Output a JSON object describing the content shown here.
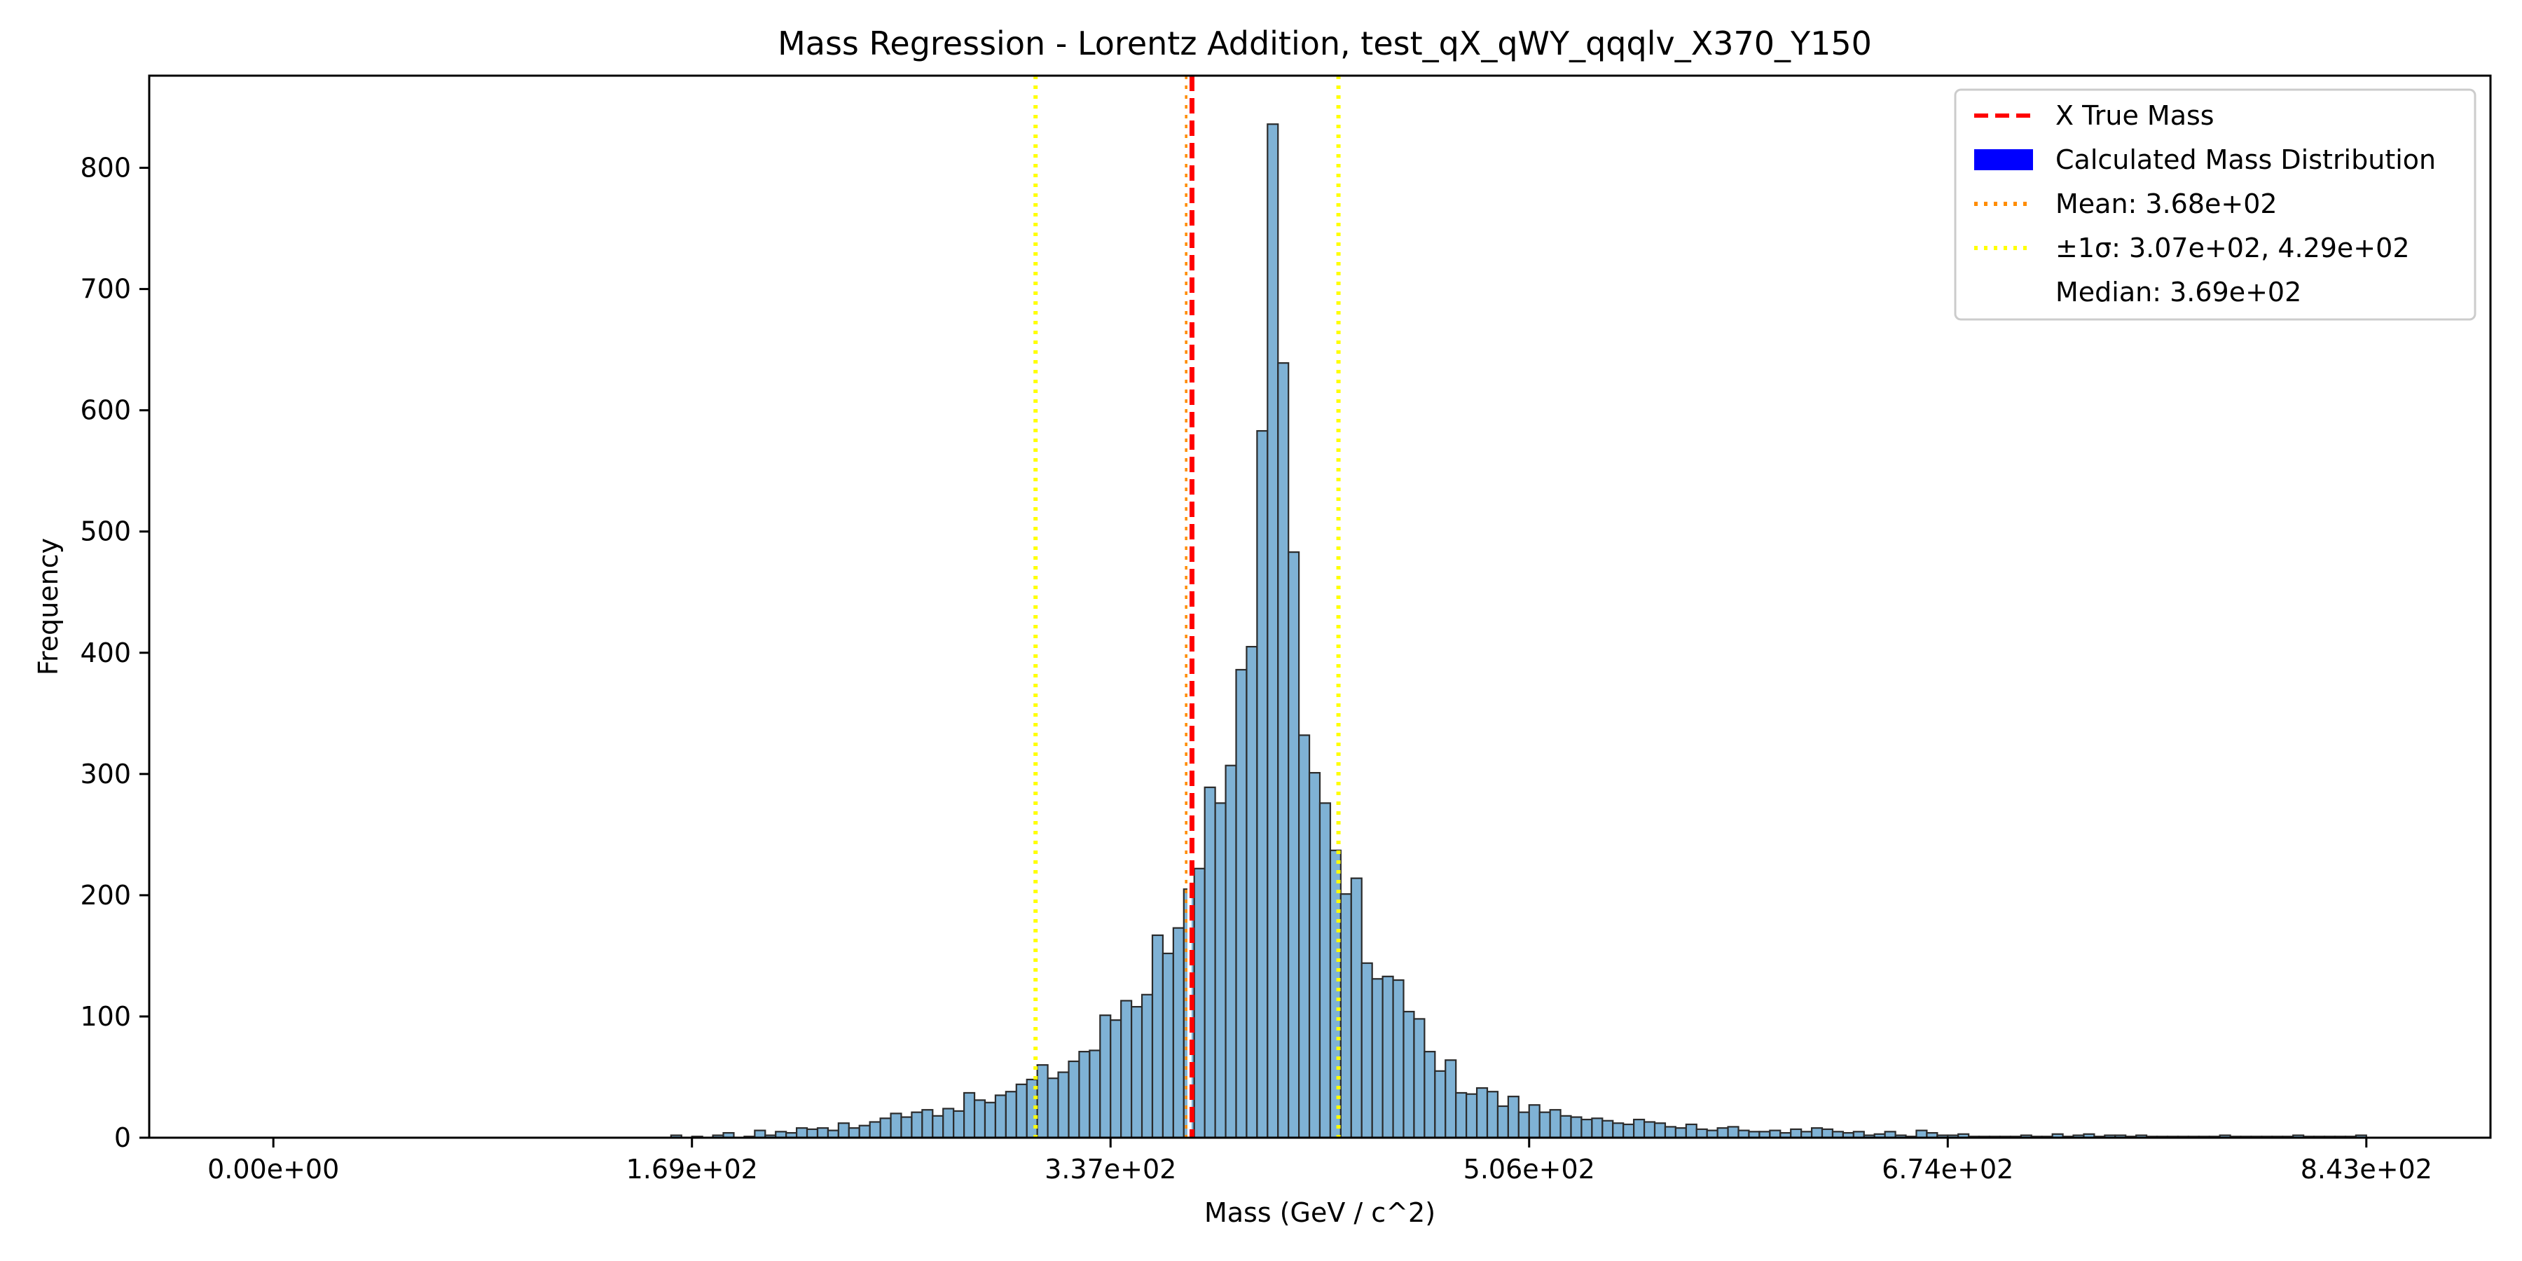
{
  "chart_data": {
    "type": "bar",
    "title": "Mass Regression - Lorentz Addition, test_qX_qWY_qqqlv_X370_Y150",
    "xlabel": "Mass (GeV / c^2)",
    "ylabel": "Frequency",
    "xlim": [
      -50,
      893
    ],
    "ylim": [
      0,
      876
    ],
    "x_ticks": [
      {
        "value": 0,
        "label": "0.00e+00"
      },
      {
        "value": 168.6,
        "label": "1.69e+02"
      },
      {
        "value": 337.2,
        "label": "3.37e+02"
      },
      {
        "value": 505.8,
        "label": "5.06e+02"
      },
      {
        "value": 674.4,
        "label": "6.74e+02"
      },
      {
        "value": 843,
        "label": "8.43e+02"
      }
    ],
    "y_ticks": [
      {
        "value": 0,
        "label": "0"
      },
      {
        "value": 100,
        "label": "100"
      },
      {
        "value": 200,
        "label": "200"
      },
      {
        "value": 300,
        "label": "300"
      },
      {
        "value": 400,
        "label": "400"
      },
      {
        "value": 500,
        "label": "500"
      },
      {
        "value": 600,
        "label": "600"
      },
      {
        "value": 700,
        "label": "700"
      },
      {
        "value": 800,
        "label": "800"
      }
    ],
    "grid": false,
    "legend_position": "top-right",
    "colors": {
      "bar_fill": "#7fb2d5",
      "bar_edge": "#2b2b2b",
      "true_mass": "#ff0000",
      "mean": "#ff8c00",
      "sigma": "#ffff00",
      "legend_patch": "#0000ff"
    },
    "histogram": {
      "bin_start": 0,
      "bin_width": 4.215,
      "counts": [
        0,
        0,
        0,
        0,
        0,
        0,
        0,
        0,
        0,
        0,
        0,
        0,
        0,
        0,
        0,
        0,
        0,
        0,
        0,
        0,
        0,
        0,
        0,
        0,
        0,
        0,
        0,
        0,
        0,
        0,
        0,
        0,
        0,
        0,
        0,
        0,
        0,
        0,
        0,
        0,
        0,
        0,
        0,
        0,
        0,
        0,
        0,
        0,
        0,
        0,
        0,
        0,
        0,
        0,
        0,
        0,
        0,
        0,
        0,
        0,
        0,
        0,
        0,
        0,
        0,
        0,
        0,
        0,
        0,
        0,
        0,
        0,
        0,
        0,
        0,
        0,
        0,
        0,
        0,
        0,
        0,
        0,
        0,
        0,
        0,
        0,
        0,
        0,
        0,
        0,
        0,
        0,
        0,
        0,
        0,
        0,
        0,
        0,
        0,
        0,
        0,
        0,
        0,
        0,
        0,
        0,
        0,
        0,
        0,
        0,
        0,
        0,
        0,
        0,
        0,
        0,
        0,
        0,
        0,
        0,
        0,
        0,
        0,
        0,
        0,
        0,
        0,
        0,
        0,
        0,
        0,
        0,
        0,
        0,
        0,
        0,
        0,
        0,
        0,
        0,
        0,
        0,
        0,
        0,
        0,
        0,
        0,
        0,
        0,
        0,
        0,
        0,
        0,
        0,
        0,
        0,
        0,
        0,
        0,
        0,
        0,
        0,
        0,
        0,
        0,
        0,
        0,
        0,
        0,
        0,
        0,
        0,
        0,
        0,
        0,
        0,
        0,
        0,
        0,
        0,
        0,
        0,
        0,
        0,
        0,
        0,
        0,
        0,
        0,
        0,
        0,
        0,
        0,
        0,
        0,
        0,
        0,
        0,
        0,
        0
      ],
      "counts_nonzero": [
        [
          38,
          2
        ],
        [
          40,
          1
        ],
        [
          42,
          2
        ],
        [
          43,
          4
        ],
        [
          45,
          1
        ],
        [
          46,
          6
        ],
        [
          47,
          2
        ],
        [
          48,
          5
        ],
        [
          49,
          4
        ],
        [
          50,
          8
        ],
        [
          51,
          7
        ],
        [
          52,
          8
        ],
        [
          53,
          6
        ],
        [
          54,
          12
        ],
        [
          55,
          8
        ],
        [
          56,
          10
        ],
        [
          57,
          13
        ],
        [
          58,
          16
        ],
        [
          59,
          20
        ],
        [
          60,
          17
        ],
        [
          61,
          21
        ],
        [
          62,
          23
        ],
        [
          63,
          18
        ],
        [
          64,
          24
        ],
        [
          65,
          22
        ],
        [
          66,
          37
        ],
        [
          67,
          31
        ],
        [
          68,
          29
        ],
        [
          69,
          35
        ],
        [
          70,
          38
        ],
        [
          71,
          44
        ],
        [
          72,
          48
        ],
        [
          73,
          60
        ],
        [
          74,
          49
        ],
        [
          75,
          54
        ],
        [
          76,
          63
        ],
        [
          77,
          71
        ],
        [
          78,
          72
        ],
        [
          79,
          101
        ],
        [
          80,
          97
        ],
        [
          81,
          113
        ],
        [
          82,
          108
        ],
        [
          83,
          118
        ],
        [
          84,
          167
        ],
        [
          85,
          152
        ],
        [
          86,
          173
        ],
        [
          87,
          205
        ],
        [
          88,
          222
        ],
        [
          89,
          289
        ],
        [
          90,
          276
        ],
        [
          91,
          307
        ],
        [
          92,
          386
        ],
        [
          93,
          405
        ],
        [
          94,
          583
        ],
        [
          95,
          836
        ],
        [
          96,
          639
        ],
        [
          97,
          483
        ],
        [
          98,
          332
        ],
        [
          99,
          301
        ],
        [
          100,
          276
        ],
        [
          101,
          237
        ],
        [
          102,
          201
        ],
        [
          103,
          214
        ],
        [
          104,
          144
        ],
        [
          105,
          131
        ],
        [
          106,
          133
        ],
        [
          107,
          130
        ],
        [
          108,
          104
        ],
        [
          109,
          98
        ],
        [
          110,
          71
        ],
        [
          111,
          55
        ],
        [
          112,
          64
        ],
        [
          113,
          37
        ],
        [
          114,
          36
        ],
        [
          115,
          41
        ],
        [
          116,
          38
        ],
        [
          117,
          26
        ],
        [
          118,
          34
        ],
        [
          119,
          21
        ],
        [
          120,
          27
        ],
        [
          121,
          21
        ],
        [
          122,
          23
        ],
        [
          123,
          18
        ],
        [
          124,
          17
        ],
        [
          125,
          15
        ],
        [
          126,
          16
        ],
        [
          127,
          14
        ],
        [
          128,
          12
        ],
        [
          129,
          11
        ],
        [
          130,
          15
        ],
        [
          131,
          13
        ],
        [
          132,
          12
        ],
        [
          133,
          9
        ],
        [
          134,
          8
        ],
        [
          135,
          11
        ],
        [
          136,
          7
        ],
        [
          137,
          6
        ],
        [
          138,
          8
        ],
        [
          139,
          9
        ],
        [
          140,
          6
        ],
        [
          141,
          5
        ],
        [
          142,
          5
        ],
        [
          143,
          6
        ],
        [
          144,
          4
        ],
        [
          145,
          7
        ],
        [
          146,
          5
        ],
        [
          147,
          8
        ],
        [
          148,
          7
        ],
        [
          149,
          5
        ],
        [
          150,
          4
        ],
        [
          151,
          5
        ],
        [
          152,
          2
        ],
        [
          153,
          3
        ],
        [
          154,
          5
        ],
        [
          155,
          2
        ],
        [
          156,
          1
        ],
        [
          157,
          6
        ],
        [
          158,
          4
        ],
        [
          159,
          2
        ],
        [
          160,
          2
        ],
        [
          161,
          3
        ],
        [
          162,
          1
        ],
        [
          163,
          1
        ],
        [
          164,
          1
        ],
        [
          165,
          1
        ],
        [
          166,
          1
        ],
        [
          167,
          2
        ],
        [
          168,
          1
        ],
        [
          169,
          1
        ],
        [
          170,
          3
        ],
        [
          171,
          1
        ],
        [
          172,
          2
        ],
        [
          173,
          3
        ],
        [
          174,
          1
        ],
        [
          175,
          2
        ],
        [
          176,
          2
        ],
        [
          177,
          1
        ],
        [
          178,
          2
        ],
        [
          179,
          1
        ],
        [
          180,
          1
        ],
        [
          181,
          1
        ],
        [
          182,
          1
        ],
        [
          183,
          1
        ],
        [
          184,
          1
        ],
        [
          185,
          1
        ],
        [
          186,
          2
        ],
        [
          187,
          1
        ],
        [
          188,
          1
        ],
        [
          189,
          1
        ],
        [
          190,
          1
        ],
        [
          191,
          1
        ],
        [
          192,
          1
        ],
        [
          193,
          2
        ],
        [
          194,
          1
        ],
        [
          195,
          1
        ],
        [
          196,
          1
        ],
        [
          197,
          1
        ],
        [
          198,
          1
        ],
        [
          199,
          2
        ]
      ]
    },
    "vlines": [
      {
        "name": "X True Mass",
        "x": 370,
        "style": "dashed",
        "color": "#ff0000"
      },
      {
        "name": "Mean",
        "x": 368,
        "style": "dotted",
        "color": "#ff8c00"
      },
      {
        "name": "Median",
        "x": 369,
        "style": "solid",
        "color": "#ffffff"
      },
      {
        "name": "sigma_low",
        "x": 307,
        "style": "dotted",
        "color": "#ffff00"
      },
      {
        "name": "sigma_high",
        "x": 429,
        "style": "dotted",
        "color": "#ffff00"
      }
    ],
    "legend": [
      {
        "label": "X True Mass",
        "kind": "dashed-line",
        "color": "#ff0000"
      },
      {
        "label": "Calculated Mass Distribution",
        "kind": "patch",
        "color": "#0000ff"
      },
      {
        "label": "Mean: 3.68e+02",
        "kind": "dotted-line",
        "color": "#ff8c00"
      },
      {
        "label": "±1σ: 3.07e+02, 4.29e+02",
        "kind": "dotted-line",
        "color": "#ffff00"
      },
      {
        "label": "Median: 3.69e+02",
        "kind": "none",
        "color": "#ffffff"
      }
    ]
  }
}
